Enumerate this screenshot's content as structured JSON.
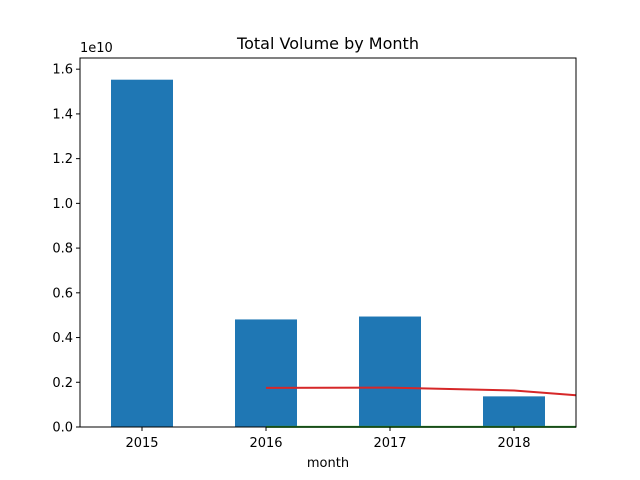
{
  "chart_data": {
    "type": "bar",
    "title": "Total Volume by Month",
    "xlabel": "month",
    "ylabel": "",
    "y_multiplier_label": "1e10",
    "y_scale_factor": 10000000000,
    "categories": [
      "2015",
      "2016",
      "2017",
      "2018"
    ],
    "values": [
      15530000000,
      4810000000,
      4940000000,
      1370000000
    ],
    "bar_color": "#1f77b4",
    "ylim": [
      0,
      16500000000
    ],
    "y_ticks": [
      0.0,
      0.2,
      0.4,
      0.6,
      0.8,
      1.0,
      1.2,
      1.4,
      1.6
    ],
    "y_tick_labels": [
      "0.0",
      "0.2",
      "0.4",
      "0.6",
      "0.8",
      "1.0",
      "1.2",
      "1.4",
      "1.6"
    ],
    "x_range": [
      -0.5,
      3.5
    ],
    "overlay_lines": [
      {
        "color": "#d62728",
        "points": [
          [
            1.0,
            1750000000
          ],
          [
            2.0,
            1760000000
          ],
          [
            3.0,
            1630000000
          ],
          [
            3.5,
            1420000000
          ]
        ]
      },
      {
        "color": "#2ca02c",
        "points": [
          [
            1.0,
            8000000
          ],
          [
            2.0,
            8000000
          ],
          [
            3.0,
            8000000
          ],
          [
            3.5,
            8000000
          ]
        ]
      }
    ],
    "grid": false,
    "legend": "none"
  }
}
